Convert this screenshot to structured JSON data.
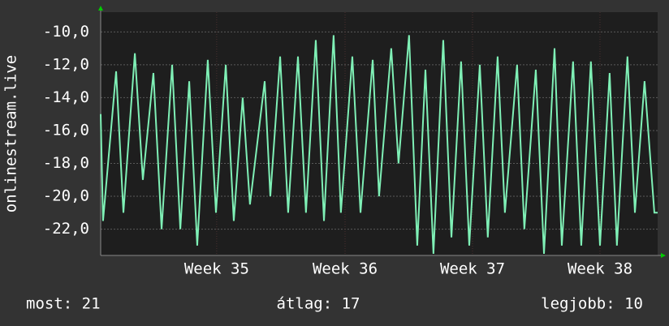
{
  "chart_data": {
    "type": "line",
    "y_label": "onlinestream.live",
    "x": [
      0,
      0.13,
      0.85,
      1.25,
      1.88,
      2.32,
      2.9,
      3.35,
      3.93,
      4.38,
      4.87,
      5.31,
      5.89,
      6.34,
      6.88,
      7.32,
      7.81,
      8.21,
      9.02,
      9.33,
      9.87,
      10.31,
      10.85,
      11.29,
      11.83,
      12.28,
      12.81,
      13.21,
      13.84,
      14.29,
      14.96,
      15.31,
      15.98,
      16.38,
      16.96,
      17.41,
      17.86,
      18.3,
      18.84,
      19.29,
      19.82,
      20.27,
      20.85,
      21.29,
      21.83,
      22.23,
      22.9,
      23.3,
      23.93,
      24.38,
      24.96,
      25.36,
      25.98,
      26.43,
      26.96,
      27.46,
      27.99,
      28.39,
      28.97,
      29.38,
      29.91,
      30.45,
      30.63
    ],
    "series": [
      {
        "name": "onlinestream.live",
        "color": "#7ff0b6",
        "values": [
          -15,
          -21.5,
          -12.4,
          -21,
          -11.3,
          -19,
          -12.5,
          -22,
          -12,
          -22,
          -13,
          -23,
          -11.7,
          -21,
          -12,
          -21.5,
          -14,
          -20.5,
          -13,
          -20,
          -11.5,
          -21,
          -11.5,
          -21,
          -10.5,
          -21.5,
          -10.2,
          -21,
          -11.5,
          -21,
          -11.7,
          -20,
          -11,
          -18,
          -10.2,
          -23,
          -12.3,
          -23.5,
          -10.5,
          -22.5,
          -11.8,
          -23,
          -12,
          -22.5,
          -11.5,
          -21,
          -12,
          -22,
          -12.3,
          -23.5,
          -11,
          -23,
          -11.8,
          -23,
          -11.8,
          -23,
          -12.5,
          -23,
          -11.5,
          -21,
          -13,
          -21,
          -21
        ]
      }
    ],
    "xlim": [
      0,
      30.63
    ],
    "xticks": [
      {
        "value": 6.38,
        "label": "Week 35"
      },
      {
        "value": 13.44,
        "label": "Week 36"
      },
      {
        "value": 20.45,
        "label": "Week 37"
      },
      {
        "value": 27.46,
        "label": "Week 38"
      }
    ],
    "ylim": [
      -23.6,
      -8.8
    ],
    "yticks": [
      {
        "value": -22,
        "label": "-22,0"
      },
      {
        "value": -20,
        "label": "-20,0"
      },
      {
        "value": -18,
        "label": "-18,0"
      },
      {
        "value": -16,
        "label": "-16,0"
      },
      {
        "value": -14,
        "label": "-14,0"
      },
      {
        "value": -12,
        "label": "-12,0"
      },
      {
        "value": -10,
        "label": "-10,0"
      }
    ],
    "grid": true,
    "stats": [
      "most: 21",
      "átlag: 17",
      "legjobb: 10"
    ]
  }
}
